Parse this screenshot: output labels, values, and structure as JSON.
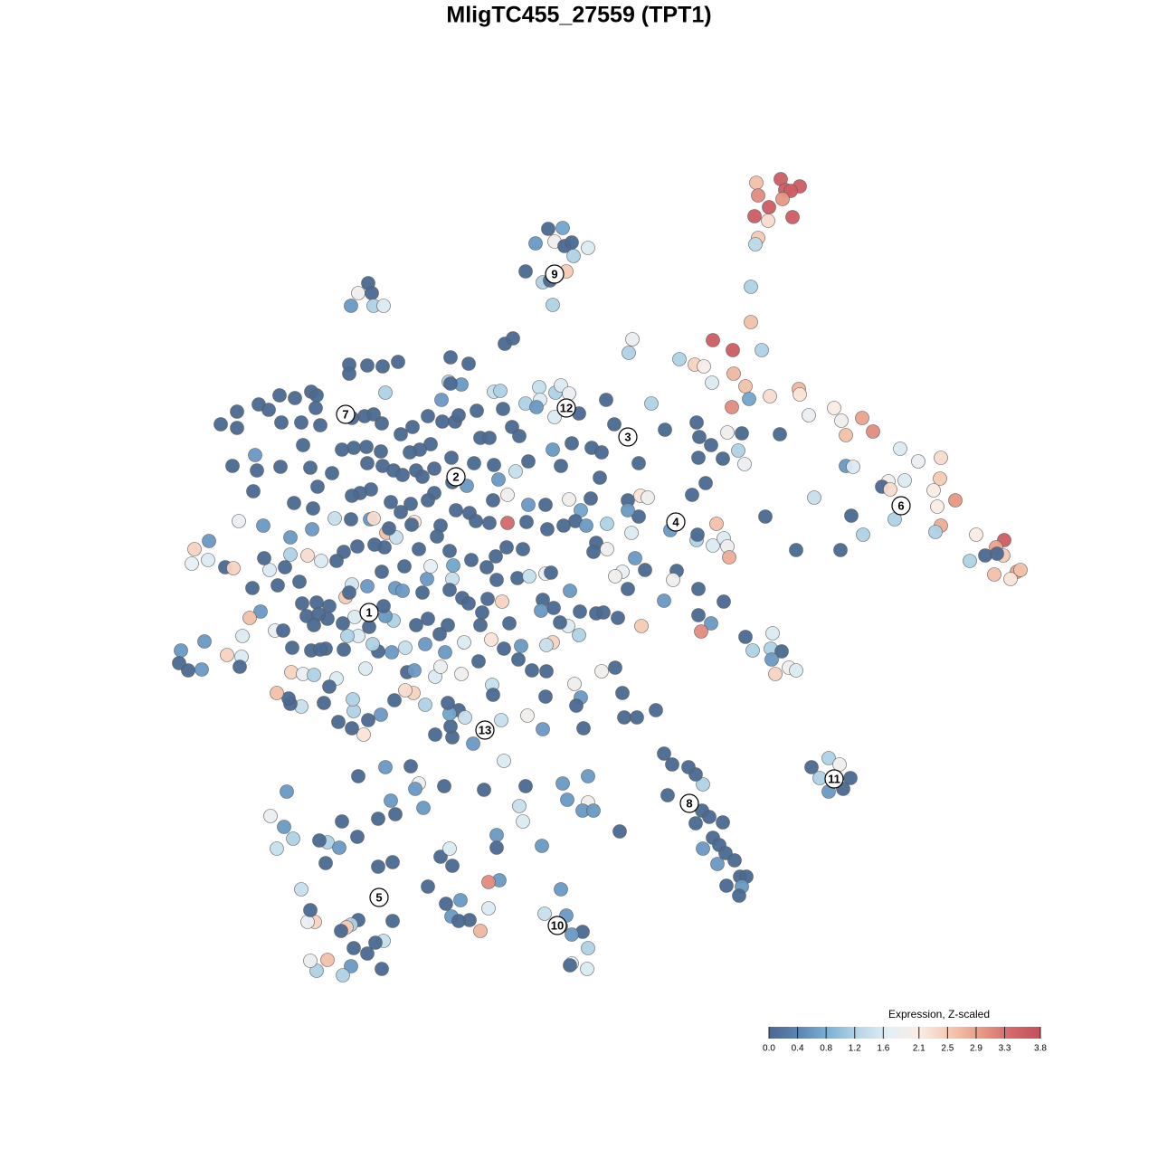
{
  "chart_data": {
    "type": "scatter",
    "title": "MligTC455_27559 (TPT1)",
    "xlim": [
      0,
      1280
    ],
    "ylim": [
      1280,
      0
    ],
    "x": [
      836,
      863,
      868,
      884,
      874,
      838,
      865,
      850,
      834,
      849,
      876,
      838,
      835,
      830,
      830,
      606,
      622,
      592,
      613,
      624,
      632,
      650,
      634,
      581,
      626,
      600,
      608,
      611,
      407,
      396,
      411,
      388,
      413,
      424,
      558,
      567,
      699,
      695,
      751,
      788,
      810,
      842,
      768,
      778,
      811,
      787,
      824,
      828,
      809,
      851,
      883,
      884,
      894,
      922,
      930,
      953,
      965,
      935,
      862,
      820,
      804,
      816,
      823,
      799,
      786,
      773,
      770,
      735,
      720,
      670,
      679,
      694,
      706,
      663,
      694,
      708,
      716,
      706,
      694,
      741,
      765,
      780,
      772,
      995,
      1040,
      1015,
      982,
      1000,
      1039,
      975,
      935,
      943,
      984,
      1032,
      1036,
      1056,
      989,
      1040,
      1034,
      941,
      954,
      900,
      846,
      880,
      929,
      1079,
      1110,
      1101,
      1089,
      1109,
      1102,
      1072,
      1124,
      1128,
      1099,
      1117,
      792,
      770,
      788,
      800,
      804,
      806,
      771,
      748,
      744,
      772,
      734,
      800,
      772,
      786,
      775,
      709,
      824,
      832,
      854,
      852,
      864,
      853,
      872,
      880,
      857,
      654,
      665,
      611,
      620,
      632,
      653,
      642,
      636,
      648,
      671,
      659,
      656,
      671,
      698,
      702,
      713,
      688,
      680,
      694,
      659,
      683,
      667,
      628,
      640,
      680,
      665,
      635,
      642,
      688,
      725,
      690,
      704,
      645,
      603,
      600,
      637,
      734,
      743,
      761,
      777,
      769,
      738,
      776,
      769,
      784,
      799,
      788,
      795,
      777,
      802,
      793,
      812,
      818,
      825,
      820,
      803,
      817,
      916,
      928,
      897,
      906,
      940,
      916,
      932,
      620,
      602,
      626,
      620,
      644,
      632,
      650,
      632,
      630,
      649,
      685,
      622,
      650,
      627,
      650,
      644,
      656,
      599,
      581,
      574,
      578,
      557,
      535,
      549,
      549,
      552,
      540,
      540,
      531,
      519,
      509,
      499,
      507,
      493,
      487,
      497,
      473,
      500,
      491,
      463,
      459,
      468,
      454,
      437,
      432,
      418,
      426,
      396,
      434,
      418,
      434,
      396,
      388,
      383,
      377,
      424,
      415,
      406,
      391,
      388,
      379,
      362,
      350,
      343,
      348,
      340,
      343,
      333,
      360,
      362,
      353,
      375,
      378,
      395,
      324,
      314,
      306,
      299,
      317,
      422,
      523,
      500,
      481,
      498,
      507,
      514,
      497,
      495,
      470,
      457,
      448,
      436,
      421,
      407,
      391,
      390,
      402,
      389,
      374,
      358,
      333,
      321,
      319,
      306,
      322,
      335,
      347,
      372,
      364,
      404,
      450,
      458,
      481,
      487,
      510,
      529,
      544,
      545,
      554,
      583,
      557,
      543,
      573,
      576,
      563,
      531,
      533,
      513,
      492,
      470,
      448,
      433,
      418,
      412,
      396,
      380,
      360,
      344,
      323,
      304,
      313,
      288,
      276,
      268,
      251,
      226,
      200,
      198,
      208,
      223,
      267,
      265,
      384,
      354,
      244,
      262,
      262,
      286,
      297,
      309,
      311,
      326,
      333,
      344,
      350,
      349,
      354,
      386,
      386,
      406,
      423,
      440,
      498,
      518,
      496,
      510,
      498,
      426,
      403,
      389,
      422,
      413,
      443,
      456,
      473,
      489,
      503,
      507,
      488,
      527,
      546,
      553,
      556,
      566,
      581,
      596,
      597,
      593,
      614,
      620,
      629,
      613,
      640,
      574,
      531,
      541,
      476,
      464,
      453,
      421,
      405,
      391,
      378,
      335,
      257,
      282,
      284,
      310,
      343,
      367,
      406,
      423,
      435,
      445,
      460,
      480,
      499,
      524,
      546,
      570,
      584,
      551,
      516,
      500,
      480,
      473,
      454,
      443,
      432,
      410,
      398,
      389,
      351,
      325,
      280,
      264,
      291,
      321,
      346,
      345,
      370,
      388,
      409,
      413,
      427,
      458,
      487,
      504,
      519,
      526,
      541,
      561,
      582,
      584,
      561,
      545,
      603,
      629,
      605,
      623,
      578,
      560,
      548,
      538,
      521,
      497,
      483,
      463,
      447,
      438,
      425,
      414,
      395,
      380,
      372,
      355,
      340,
      321,
      315,
      298,
      292,
      279,
      249,
      258,
      231,
      215,
      212,
      230,
      307,
      331,
      334,
      350,
      339,
      364,
      382,
      389,
      406,
      422,
      437,
      445,
      467,
      472,
      476,
      501,
      500,
      497,
      511,
      518,
      539,
      555,
      549,
      572,
      585,
      603,
      609,
      600,
      612,
      598,
      630,
      641,
      619,
      611,
      604,
      588,
      604,
      495,
      486,
      473,
      460,
      435,
      426,
      424,
      408,
      392,
      379,
      362,
      352,
      347,
      430,
      386,
      467,
      455
    ],
    "y": [
      202,
      198,
      210,
      206,
      211,
      216,
      220,
      229,
      239,
      244,
      240,
      263,
      270,
      317,
      356,
      253,
      252,
      269,
      267,
      272,
      268,
      274,
      283,
      300,
      300,
      312,
      310,
      337,
      313,
      324,
      324,
      338,
      338,
      338,
      380,
      374,
      375,
      390,
      397,
      376,
      387,
      387,
      403,
      405,
      413,
      423,
      427,
      441,
      450,
      438,
      430,
      436,
      459,
      451,
      465,
      462,
      477,
      481,
      480,
      479,
      478,
      498,
      513,
      507,
      492,
      483,
      467,
      475,
      446,
      442,
      469,
      483,
      512,
      528,
      553,
      548,
      550,
      571,
      564,
      586,
      547,
      534,
      506,
      496,
      506,
      510,
      532,
      531,
      529,
      538,
      515,
      516,
      541,
      542,
      560,
      553,
      574,
      581,
      588,
      570,
      591,
      550,
      571,
      608,
      608,
      591,
      597,
      605,
      614,
      614,
      612,
      620,
      632,
      630,
      635,
      640,
      579,
      597,
      603,
      595,
      604,
      616,
      591,
      631,
      641,
      651,
      664,
      665,
      680,
      689,
      698,
      692,
      704,
      719,
      700,
      717,
      720,
      729,
      738,
      741,
      745,
      495,
      500,
      497,
      515,
      490,
      551,
      564,
      576,
      581,
      579,
      600,
      610,
      607,
      589,
      617,
      630,
      632,
      637,
      651,
      678,
      683,
      677,
      692,
      702,
      738,
      742,
      756,
      771,
      766,
      785,
      793,
      793,
      805,
      770,
      806,
      780,
      833,
      845,
      848,
      867,
      856,
      879,
      896,
      910,
      903,
      909,
      926,
      934,
      938,
      943,
      955,
      951,
      969,
      969,
      980,
      979,
      990,
      838,
      845,
      848,
      860,
      860,
      875,
      872,
      983,
      1010,
      1012,
      1024,
      1030,
      1033,
      1048,
      1065,
      1067,
      1071,
      919,
      866,
      858,
      884,
      887,
      896,
      896,
      935,
      869,
      891,
      908,
      841,
      873,
      923,
      937,
      973,
      975,
      1004,
      1029,
      1017,
      995,
      1013,
      1018,
      999,
      947,
      938,
      980,
      957,
      869,
      866,
      872,
      893,
      847,
      900,
      885,
      905,
      848,
      858,
      953,
      958,
      1018,
      1017,
      1022,
      1025,
      1029,
      1040,
      1042,
      1054,
      1048,
      1068,
      1078,
      1061,
      1073,
      1062,
      1019,
      1019,
      1006,
      983,
      954,
      931,
      929,
      937,
      908,
      925,
      927,
      914,
      938,
      902,
      875,
      1071,
      822,
      815,
      812,
      803,
      785,
      793,
      789,
      777,
      779,
      766,
      763,
      774,
      790,
      796,
      786,
      773,
      812,
      805,
      798,
      777,
      781,
      778,
      772,
      766,
      743,
      745,
      746,
      750,
      759,
      739,
      743,
      741,
      748,
      737,
      745,
      731,
      757,
      768,
      796,
      791,
      717,
      707,
      729,
      714,
      689,
      691,
      677,
      710,
      721,
      712,
      716,
      721,
      720,
      712,
      703,
      718,
      717,
      719,
      716,
      697,
      697,
      676,
      683,
      703,
      724,
      709,
      719,
      733,
      741,
      740,
      726,
      737,
      703,
      718,
      469,
      455,
      473,
      447,
      453,
      437,
      467,
      440,
      467,
      433,
      437,
      451,
      470,
      403,
      413,
      404,
      405,
      400,
      395,
      402,
      422,
      425,
      424,
      434,
      460,
      462,
      468,
      458,
      480,
      472,
      460,
      466,
      466,
      459,
      442,
      454,
      433,
      432,
      452,
      472,
      446,
      428,
      442,
      450,
      434,
      426,
      435,
      461,
      457,
      482,
      484,
      484,
      491,
      497,
      500,
      499,
      494,
      495,
      497,
      492,
      515,
      503,
      520,
      516,
      517,
      523,
      512,
      515,
      520,
      525,
      520,
      518,
      506,
      512,
      514,
      521,
      510,
      530,
      537,
      533,
      545,
      553,
      557,
      566,
      555,
      541,
      545,
      548,
      538,
      556,
      543,
      576,
      581,
      594,
      562,
      585,
      573,
      574,
      574,
      573,
      589,
      577,
      581,
      564,
      567,
      576,
      578,
      578,
      577,
      558,
      547,
      553,
      558,
      552,
      585,
      581,
      607,
      605,
      615,
      627,
      619,
      609,
      593,
      607,
      626,
      594,
      605,
      602,
      604,
      610,
      620,
      620,
      614,
      613,
      627,
      630,
      617,
      650,
      627,
      628,
      598,
      607,
      623,
      619,
      647,
      643,
      667,
      666,
      681,
      670,
      660,
      646,
      648,
      632,
      650,
      653,
      655,
      640,
      626,
      625,
      640,
      652,
      661,
      667,
      662,
      665,
      641,
      639,
      637,
      634,
      633,
      663,
      672,
      675,
      653,
      676,
      688,
      710,
      713,
      741,
      742,
      691,
      701,
      684,
      691,
      686,
      681,
      670,
      693,
      682,
      689,
      684,
      679,
      691,
      584,
      655,
      527,
      580
    ],
    "values": [
      2.6,
      3.6,
      3.6,
      3.6,
      3.6,
      3.1,
      3.0,
      3.6,
      3.6,
      2.3,
      3.6,
      2.5,
      1.3,
      1.2,
      2.6,
      0,
      0.7,
      0.6,
      1.9,
      0,
      0,
      1.6,
      1.2,
      0,
      2.5,
      1.2,
      0,
      1.2,
      0,
      1.9,
      0,
      0.6,
      1.2,
      1.6,
      0,
      0,
      1.8,
      1.2,
      1.2,
      3.6,
      3.6,
      1.2,
      2.4,
      2.0,
      2.7,
      1.6,
      2.6,
      0.7,
      3.1,
      2.3,
      2.7,
      2.2,
      1.8,
      2.1,
      1.9,
      2.9,
      3.1,
      2.6,
      0,
      0,
      1.9,
      1.2,
      1.8,
      0,
      0,
      0,
      0,
      0,
      1.2,
      0,
      0,
      0,
      0,
      0,
      0,
      2.2,
      1.9,
      0,
      0.6,
      0.6,
      0,
      0,
      0,
      1.6,
      2.3,
      1.8,
      1.9,
      1.6,
      2.5,
      0,
      0.6,
      1.6,
      2.3,
      2.1,
      2.1,
      3.0,
      1.2,
      2.8,
      1.2,
      0,
      1.2,
      1.4,
      0,
      0,
      0,
      2.1,
      3.6,
      2.9,
      0,
      2.5,
      0,
      1.2,
      2.9,
      2.6,
      2.6,
      2.2,
      2.6,
      1.2,
      1.6,
      1.6,
      1.9,
      2.8,
      0,
      0,
      1.9,
      0,
      0.6,
      0,
      0,
      0.6,
      3.1,
      2.5,
      0,
      1.2,
      1.6,
      1.2,
      0,
      0.6,
      1.9,
      1.6,
      2.4,
      0,
      0,
      0.6,
      0,
      0,
      0,
      0.7,
      0,
      0.6,
      1.2,
      0,
      0,
      1.9,
      1.6,
      0.6,
      0,
      1.8,
      1.9,
      0,
      0,
      0,
      0,
      1.6,
      1.2,
      0,
      1.9,
      1.9,
      0.6,
      0,
      0,
      0,
      0,
      0,
      0,
      0.6,
      0,
      0,
      0,
      0,
      1.2,
      0,
      0,
      0,
      0,
      0,
      0,
      0,
      0,
      0.6,
      0,
      0.6,
      0,
      0,
      0,
      0.6,
      0,
      0,
      1.2,
      1.9,
      0,
      1.2,
      0,
      0.6,
      0,
      0.6,
      1.4,
      0.6,
      0,
      0,
      0.6,
      1.2,
      1.8,
      0,
      1.6,
      0,
      0.6,
      0.6,
      0.6,
      1.9,
      0.6,
      0.6,
      0.6,
      0,
      1.4,
      1.6,
      1.6,
      0,
      0.6,
      0,
      0.6,
      3.1,
      1.6,
      2.7,
      0,
      0.6,
      0.6,
      0,
      0,
      0,
      1.6,
      0,
      0,
      0,
      1.8,
      0.6,
      0.6,
      0,
      0,
      0.6,
      0,
      0.6,
      0,
      0,
      0,
      0,
      0,
      1.2,
      2.5,
      0,
      1.4,
      0,
      0,
      0,
      0.6,
      1.2,
      2.6,
      1.2,
      1.8,
      2.4,
      1.8,
      0,
      1.4,
      0,
      1.2,
      0,
      0.6,
      0,
      0,
      1.2,
      0.6,
      1.4,
      1.8,
      0.6,
      0,
      0.6,
      0,
      0,
      0,
      0,
      1.4,
      0.7,
      0,
      1.2,
      2.4,
      2.3,
      0,
      0.6,
      0,
      1.2,
      1.2,
      2.2,
      0,
      0,
      0,
      1.4,
      0,
      0,
      2.6,
      2.4,
      1.8,
      1.2,
      1.6,
      0,
      1.6,
      0,
      0.6,
      1.6,
      1.8,
      1.9,
      0,
      1.4,
      0,
      1.4,
      1.9,
      0,
      2.2,
      0,
      0.6,
      0,
      0,
      0,
      1.6,
      0.6,
      0.6,
      1.4,
      0.6,
      0,
      1.2,
      1.6,
      0,
      0,
      0,
      0,
      1.8,
      0,
      0.6,
      2.6,
      1.6,
      2.4,
      0.6,
      0.6,
      0,
      0,
      0.6,
      1.6,
      0,
      1.2,
      0,
      0,
      0,
      0,
      0,
      0,
      0,
      0,
      0,
      0,
      0,
      0,
      0,
      0,
      0,
      0,
      0,
      0,
      0,
      0,
      0,
      1.2,
      0.6,
      0,
      1.2,
      0,
      0,
      0,
      0,
      0,
      0,
      0,
      0,
      0,
      0,
      0.6,
      0,
      1.4,
      1.2,
      0,
      0,
      1.2,
      1.4,
      1.6,
      0.6,
      1.2,
      1.6,
      1.8,
      1.6,
      0,
      0,
      0,
      0,
      0,
      0,
      0,
      0,
      0,
      0,
      0,
      0,
      0,
      0.6,
      0,
      0,
      0,
      0,
      0,
      0,
      0,
      0,
      0,
      0,
      0,
      0,
      0,
      1.4,
      0,
      0.6,
      0.6,
      0,
      0,
      0,
      0,
      0,
      0,
      0,
      0,
      0,
      0,
      0,
      0,
      1.8,
      0.6,
      0.6,
      0,
      0.6,
      1.4,
      0,
      0.6,
      2.3,
      2.6,
      2.2,
      0,
      0,
      0,
      0,
      0,
      3.4,
      0,
      0.6,
      1.9,
      0,
      0,
      1.9,
      0,
      0,
      0,
      0,
      0,
      0,
      0,
      0,
      0,
      0,
      0,
      1.4,
      0,
      0,
      0,
      0,
      0,
      1.6,
      2.3,
      1.2,
      0,
      1.6,
      0,
      0,
      0,
      2.4,
      0.6,
      2.4,
      1.7,
      1.6,
      0,
      0,
      0,
      0,
      0,
      0,
      2.5,
      1.5,
      0.6,
      0,
      0.6,
      0.6,
      0,
      0.6,
      1.7,
      0.7,
      1.4,
      0,
      0,
      0,
      0,
      2.4,
      0,
      0,
      1.4,
      1.8,
      0,
      0,
      0,
      0.6,
      0.6,
      0,
      0,
      2.4,
      1.4,
      0,
      0,
      0,
      0,
      0,
      0,
      1.2,
      0.6,
      0,
      0,
      1.6,
      0,
      0,
      0,
      0,
      0,
      0,
      0,
      0
    ],
    "annotations": [
      {
        "text": "1",
        "x": 408,
        "y": 677
      },
      {
        "text": "2",
        "x": 504,
        "y": 527
      },
      {
        "text": "3",
        "x": 694,
        "y": 483
      },
      {
        "text": "4",
        "x": 747,
        "y": 577
      },
      {
        "text": "5",
        "x": 419,
        "y": 992
      },
      {
        "text": "6",
        "x": 996,
        "y": 559
      },
      {
        "text": "7",
        "x": 382,
        "y": 458
      },
      {
        "text": "8",
        "x": 762,
        "y": 888
      },
      {
        "text": "9",
        "x": 613,
        "y": 303
      },
      {
        "text": "10",
        "x": 616,
        "y": 1023
      },
      {
        "text": "11",
        "x": 922,
        "y": 861
      },
      {
        "text": "12",
        "x": 626,
        "y": 451
      },
      {
        "text": "13",
        "x": 536,
        "y": 807
      }
    ],
    "colorbar": {
      "title": "Expression, Z-scaled",
      "lim": [
        0,
        3.8
      ],
      "ticks": [
        {
          "value": 0,
          "label": "0.0"
        },
        0.4,
        0.8,
        1.2,
        1.6,
        2.1,
        2.5,
        2.9,
        3.3,
        3.8
      ],
      "colors": [
        "#4a6991",
        "#5a86b4",
        "#7db3d7",
        "#b8d7e8",
        "#e4eff5",
        "#fbece4",
        "#f4c8b0",
        "#e89c86",
        "#d4696c",
        "#c4505b"
      ]
    }
  }
}
